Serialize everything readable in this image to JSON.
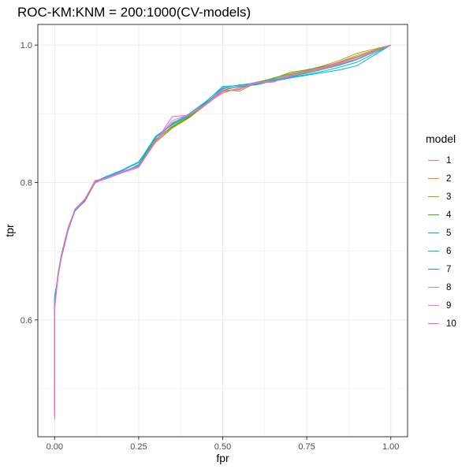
{
  "chart_data": {
    "type": "line",
    "title": "ROC-KM:KNM = 200:1000(CV-models)",
    "xlabel": "fpr",
    "ylabel": "tpr",
    "xlim": [
      -0.05,
      1.05
    ],
    "ylim": [
      0.43,
      1.03
    ],
    "x_ticks": [
      0.0,
      0.25,
      0.5,
      0.75,
      1.0
    ],
    "x_tick_labels": [
      "0.00",
      "0.25",
      "0.50",
      "0.75",
      "1.00"
    ],
    "y_ticks": [
      0.6,
      0.8,
      1.0
    ],
    "y_tick_labels": [
      "0.6",
      "0.8",
      "1.0"
    ],
    "grid": true,
    "legend": {
      "title": "model",
      "position": "right"
    },
    "series": [
      {
        "name": "1",
        "color": "#F8766D",
        "x": [
          0.0,
          0.0,
          0.01,
          0.02,
          0.04,
          0.06,
          0.09,
          0.12,
          0.15,
          0.2,
          0.25,
          0.3,
          0.35,
          0.4,
          0.45,
          0.5,
          0.55,
          0.6,
          0.65,
          0.7,
          0.75,
          0.8,
          0.85,
          0.9,
          1.0
        ],
        "y": [
          0.46,
          0.62,
          0.665,
          0.69,
          0.73,
          0.76,
          0.772,
          0.8,
          0.805,
          0.815,
          0.822,
          0.86,
          0.88,
          0.895,
          0.915,
          0.93,
          0.938,
          0.943,
          0.948,
          0.955,
          0.96,
          0.966,
          0.972,
          0.98,
          1.0
        ]
      },
      {
        "name": "2",
        "color": "#D89000",
        "x": [
          0.0,
          0.0,
          0.01,
          0.02,
          0.04,
          0.06,
          0.09,
          0.12,
          0.15,
          0.2,
          0.25,
          0.3,
          0.35,
          0.4,
          0.45,
          0.5,
          0.55,
          0.6,
          0.65,
          0.7,
          0.75,
          0.8,
          0.85,
          0.9,
          1.0
        ],
        "y": [
          0.47,
          0.625,
          0.668,
          0.695,
          0.735,
          0.76,
          0.775,
          0.801,
          0.806,
          0.814,
          0.824,
          0.862,
          0.882,
          0.896,
          0.914,
          0.935,
          0.933,
          0.945,
          0.95,
          0.957,
          0.962,
          0.968,
          0.976,
          0.985,
          1.0
        ]
      },
      {
        "name": "3",
        "color": "#A3A500",
        "x": [
          0.0,
          0.0,
          0.01,
          0.02,
          0.04,
          0.06,
          0.09,
          0.12,
          0.15,
          0.2,
          0.25,
          0.3,
          0.35,
          0.4,
          0.45,
          0.5,
          0.55,
          0.6,
          0.65,
          0.7,
          0.75,
          0.8,
          0.85,
          0.9,
          1.0
        ],
        "y": [
          0.48,
          0.63,
          0.663,
          0.692,
          0.732,
          0.758,
          0.773,
          0.799,
          0.807,
          0.816,
          0.823,
          0.858,
          0.879,
          0.894,
          0.913,
          0.932,
          0.936,
          0.944,
          0.952,
          0.958,
          0.963,
          0.97,
          0.978,
          0.988,
          1.0
        ]
      },
      {
        "name": "4",
        "color": "#39B600",
        "x": [
          0.0,
          0.0,
          0.01,
          0.02,
          0.04,
          0.06,
          0.09,
          0.12,
          0.15,
          0.2,
          0.25,
          0.3,
          0.35,
          0.4,
          0.45,
          0.5,
          0.55,
          0.6,
          0.65,
          0.7,
          0.75,
          0.8,
          0.85,
          0.9,
          1.0
        ],
        "y": [
          0.49,
          0.62,
          0.666,
          0.694,
          0.734,
          0.759,
          0.774,
          0.8,
          0.806,
          0.815,
          0.825,
          0.863,
          0.881,
          0.895,
          0.916,
          0.934,
          0.94,
          0.946,
          0.951,
          0.96,
          0.964,
          0.969,
          0.975,
          0.983,
          1.0
        ]
      },
      {
        "name": "5",
        "color": "#00BF7D",
        "x": [
          0.0,
          0.0,
          0.01,
          0.02,
          0.04,
          0.06,
          0.09,
          0.12,
          0.15,
          0.2,
          0.25,
          0.3,
          0.35,
          0.4,
          0.45,
          0.5,
          0.55,
          0.6,
          0.65,
          0.7,
          0.75,
          0.8,
          0.85,
          0.9,
          1.0
        ],
        "y": [
          0.5,
          0.63,
          0.664,
          0.693,
          0.731,
          0.761,
          0.776,
          0.802,
          0.805,
          0.814,
          0.826,
          0.866,
          0.884,
          0.897,
          0.915,
          0.937,
          0.939,
          0.943,
          0.949,
          0.954,
          0.959,
          0.965,
          0.971,
          0.979,
          1.0
        ]
      },
      {
        "name": "6",
        "color": "#00BFC4",
        "x": [
          0.0,
          0.0,
          0.01,
          0.02,
          0.04,
          0.06,
          0.09,
          0.12,
          0.15,
          0.2,
          0.25,
          0.3,
          0.35,
          0.4,
          0.45,
          0.5,
          0.55,
          0.6,
          0.65,
          0.7,
          0.75,
          0.8,
          0.85,
          0.9,
          1.0
        ],
        "y": [
          0.505,
          0.625,
          0.667,
          0.691,
          0.733,
          0.759,
          0.775,
          0.8,
          0.807,
          0.817,
          0.829,
          0.867,
          0.885,
          0.898,
          0.917,
          0.94,
          0.941,
          0.942,
          0.948,
          0.953,
          0.957,
          0.962,
          0.968,
          0.975,
          1.0
        ]
      },
      {
        "name": "7",
        "color": "#00B0F6",
        "x": [
          0.0,
          0.0,
          0.01,
          0.02,
          0.04,
          0.06,
          0.09,
          0.12,
          0.15,
          0.2,
          0.25,
          0.3,
          0.35,
          0.4,
          0.45,
          0.5,
          0.55,
          0.6,
          0.65,
          0.7,
          0.75,
          0.8,
          0.85,
          0.9,
          1.0
        ],
        "y": [
          0.51,
          0.635,
          0.662,
          0.69,
          0.73,
          0.758,
          0.774,
          0.801,
          0.808,
          0.818,
          0.83,
          0.865,
          0.886,
          0.9,
          0.918,
          0.938,
          0.942,
          0.945,
          0.947,
          0.952,
          0.956,
          0.96,
          0.964,
          0.97,
          1.0
        ]
      },
      {
        "name": "8",
        "color": "#9590FF",
        "x": [
          0.0,
          0.0,
          0.01,
          0.02,
          0.04,
          0.06,
          0.09,
          0.12,
          0.15,
          0.2,
          0.25,
          0.3,
          0.35,
          0.4,
          0.45,
          0.5,
          0.55,
          0.6,
          0.65,
          0.7,
          0.75,
          0.8,
          0.85,
          0.9,
          1.0
        ],
        "y": [
          0.47,
          0.62,
          0.665,
          0.692,
          0.733,
          0.76,
          0.776,
          0.8,
          0.806,
          0.816,
          0.824,
          0.86,
          0.887,
          0.898,
          0.914,
          0.936,
          0.94,
          0.944,
          0.95,
          0.956,
          0.962,
          0.967,
          0.974,
          0.982,
          1.0
        ]
      },
      {
        "name": "9",
        "color": "#E76BF3",
        "x": [
          0.0,
          0.0,
          0.01,
          0.02,
          0.04,
          0.06,
          0.09,
          0.12,
          0.15,
          0.2,
          0.25,
          0.3,
          0.35,
          0.4,
          0.45,
          0.5,
          0.55,
          0.6,
          0.65,
          0.7,
          0.75,
          0.8,
          0.85,
          0.9,
          1.0
        ],
        "y": [
          0.46,
          0.62,
          0.664,
          0.693,
          0.734,
          0.759,
          0.775,
          0.803,
          0.806,
          0.815,
          0.823,
          0.861,
          0.89,
          0.899,
          0.914,
          0.934,
          0.935,
          0.946,
          0.947,
          0.954,
          0.961,
          0.967,
          0.973,
          0.98,
          1.0
        ]
      },
      {
        "name": "10",
        "color": "#FF62BC",
        "x": [
          0.0,
          0.0,
          0.01,
          0.02,
          0.04,
          0.06,
          0.09,
          0.12,
          0.15,
          0.2,
          0.25,
          0.3,
          0.35,
          0.4,
          0.45,
          0.5,
          0.55,
          0.6,
          0.65,
          0.7,
          0.75,
          0.8,
          0.85,
          0.9,
          1.0
        ],
        "y": [
          0.455,
          0.615,
          0.663,
          0.691,
          0.732,
          0.76,
          0.776,
          0.801,
          0.805,
          0.814,
          0.822,
          0.859,
          0.896,
          0.898,
          0.913,
          0.933,
          0.936,
          0.945,
          0.946,
          0.955,
          0.962,
          0.968,
          0.975,
          0.982,
          1.0
        ]
      }
    ]
  }
}
